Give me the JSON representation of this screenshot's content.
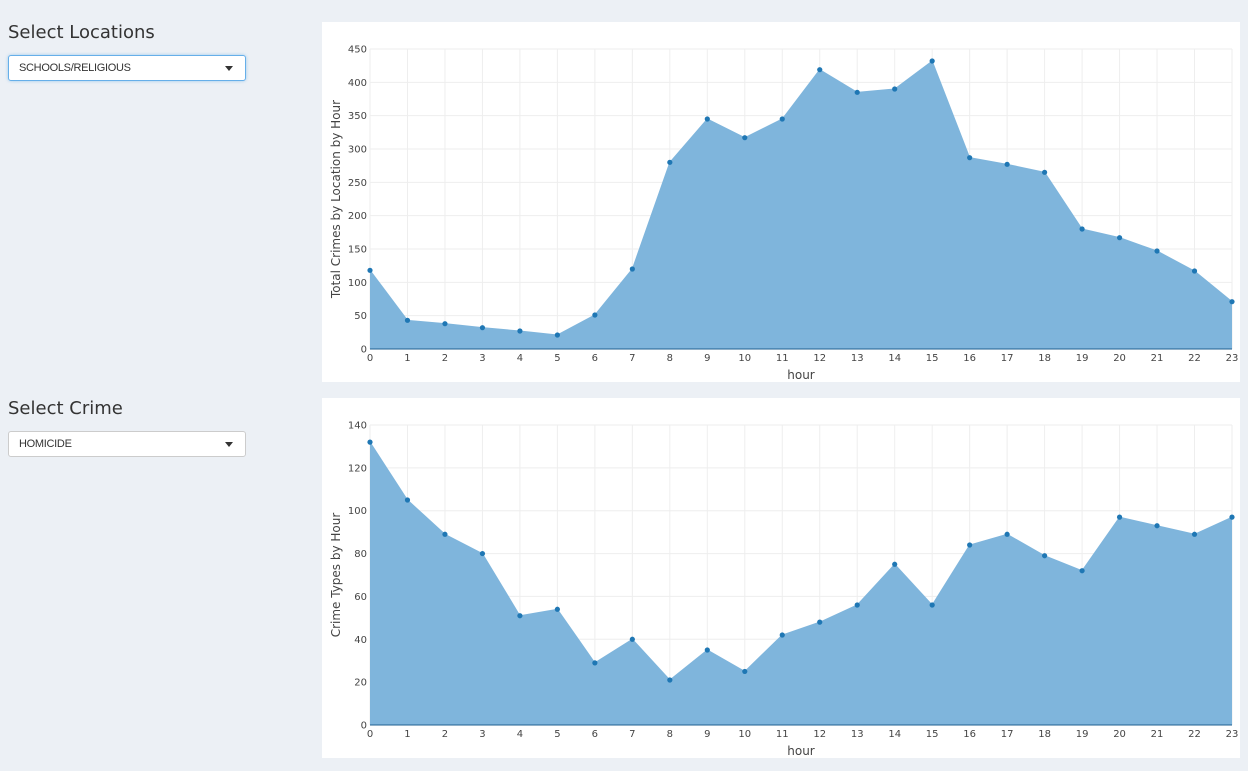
{
  "sidebar": {
    "location_title": "Select Locations",
    "location_value": "SCHOOLS/RELIGIOUS",
    "crime_title": "Select Crime",
    "crime_value": "HOMICIDE"
  },
  "colors": {
    "fill": "#7fb5dc",
    "marker": "#1f77b4",
    "background": "#ecf0f5"
  },
  "chart_data": [
    {
      "type": "area",
      "xlabel": "hour",
      "ylabel": "Total Crimes by Location by Hour",
      "x": [
        0,
        1,
        2,
        3,
        4,
        5,
        6,
        7,
        8,
        9,
        10,
        11,
        12,
        13,
        14,
        15,
        16,
        17,
        18,
        19,
        20,
        21,
        22,
        23
      ],
      "y": [
        118,
        43,
        38,
        32,
        27,
        21,
        51,
        120,
        280,
        345,
        317,
        345,
        419,
        385,
        390,
        432,
        287,
        277,
        265,
        180,
        167,
        147,
        117,
        71
      ],
      "xlim": [
        0,
        23
      ],
      "ylim": [
        0,
        450
      ],
      "yticks": [
        0,
        50,
        100,
        150,
        200,
        250,
        300,
        350,
        400,
        450
      ],
      "grid": true
    },
    {
      "type": "area",
      "xlabel": "hour",
      "ylabel": "Crime Types by Hour",
      "x": [
        0,
        1,
        2,
        3,
        4,
        5,
        6,
        7,
        8,
        9,
        10,
        11,
        12,
        13,
        14,
        15,
        16,
        17,
        18,
        19,
        20,
        21,
        22,
        23
      ],
      "y": [
        132,
        105,
        89,
        80,
        51,
        54,
        29,
        40,
        21,
        35,
        25,
        42,
        48,
        56,
        75,
        56,
        84,
        89,
        79,
        72,
        97,
        93,
        89,
        97
      ],
      "xlim": [
        0,
        23
      ],
      "ylim": [
        0,
        140
      ],
      "yticks": [
        0,
        20,
        40,
        60,
        80,
        100,
        120,
        140
      ],
      "grid": true
    }
  ]
}
